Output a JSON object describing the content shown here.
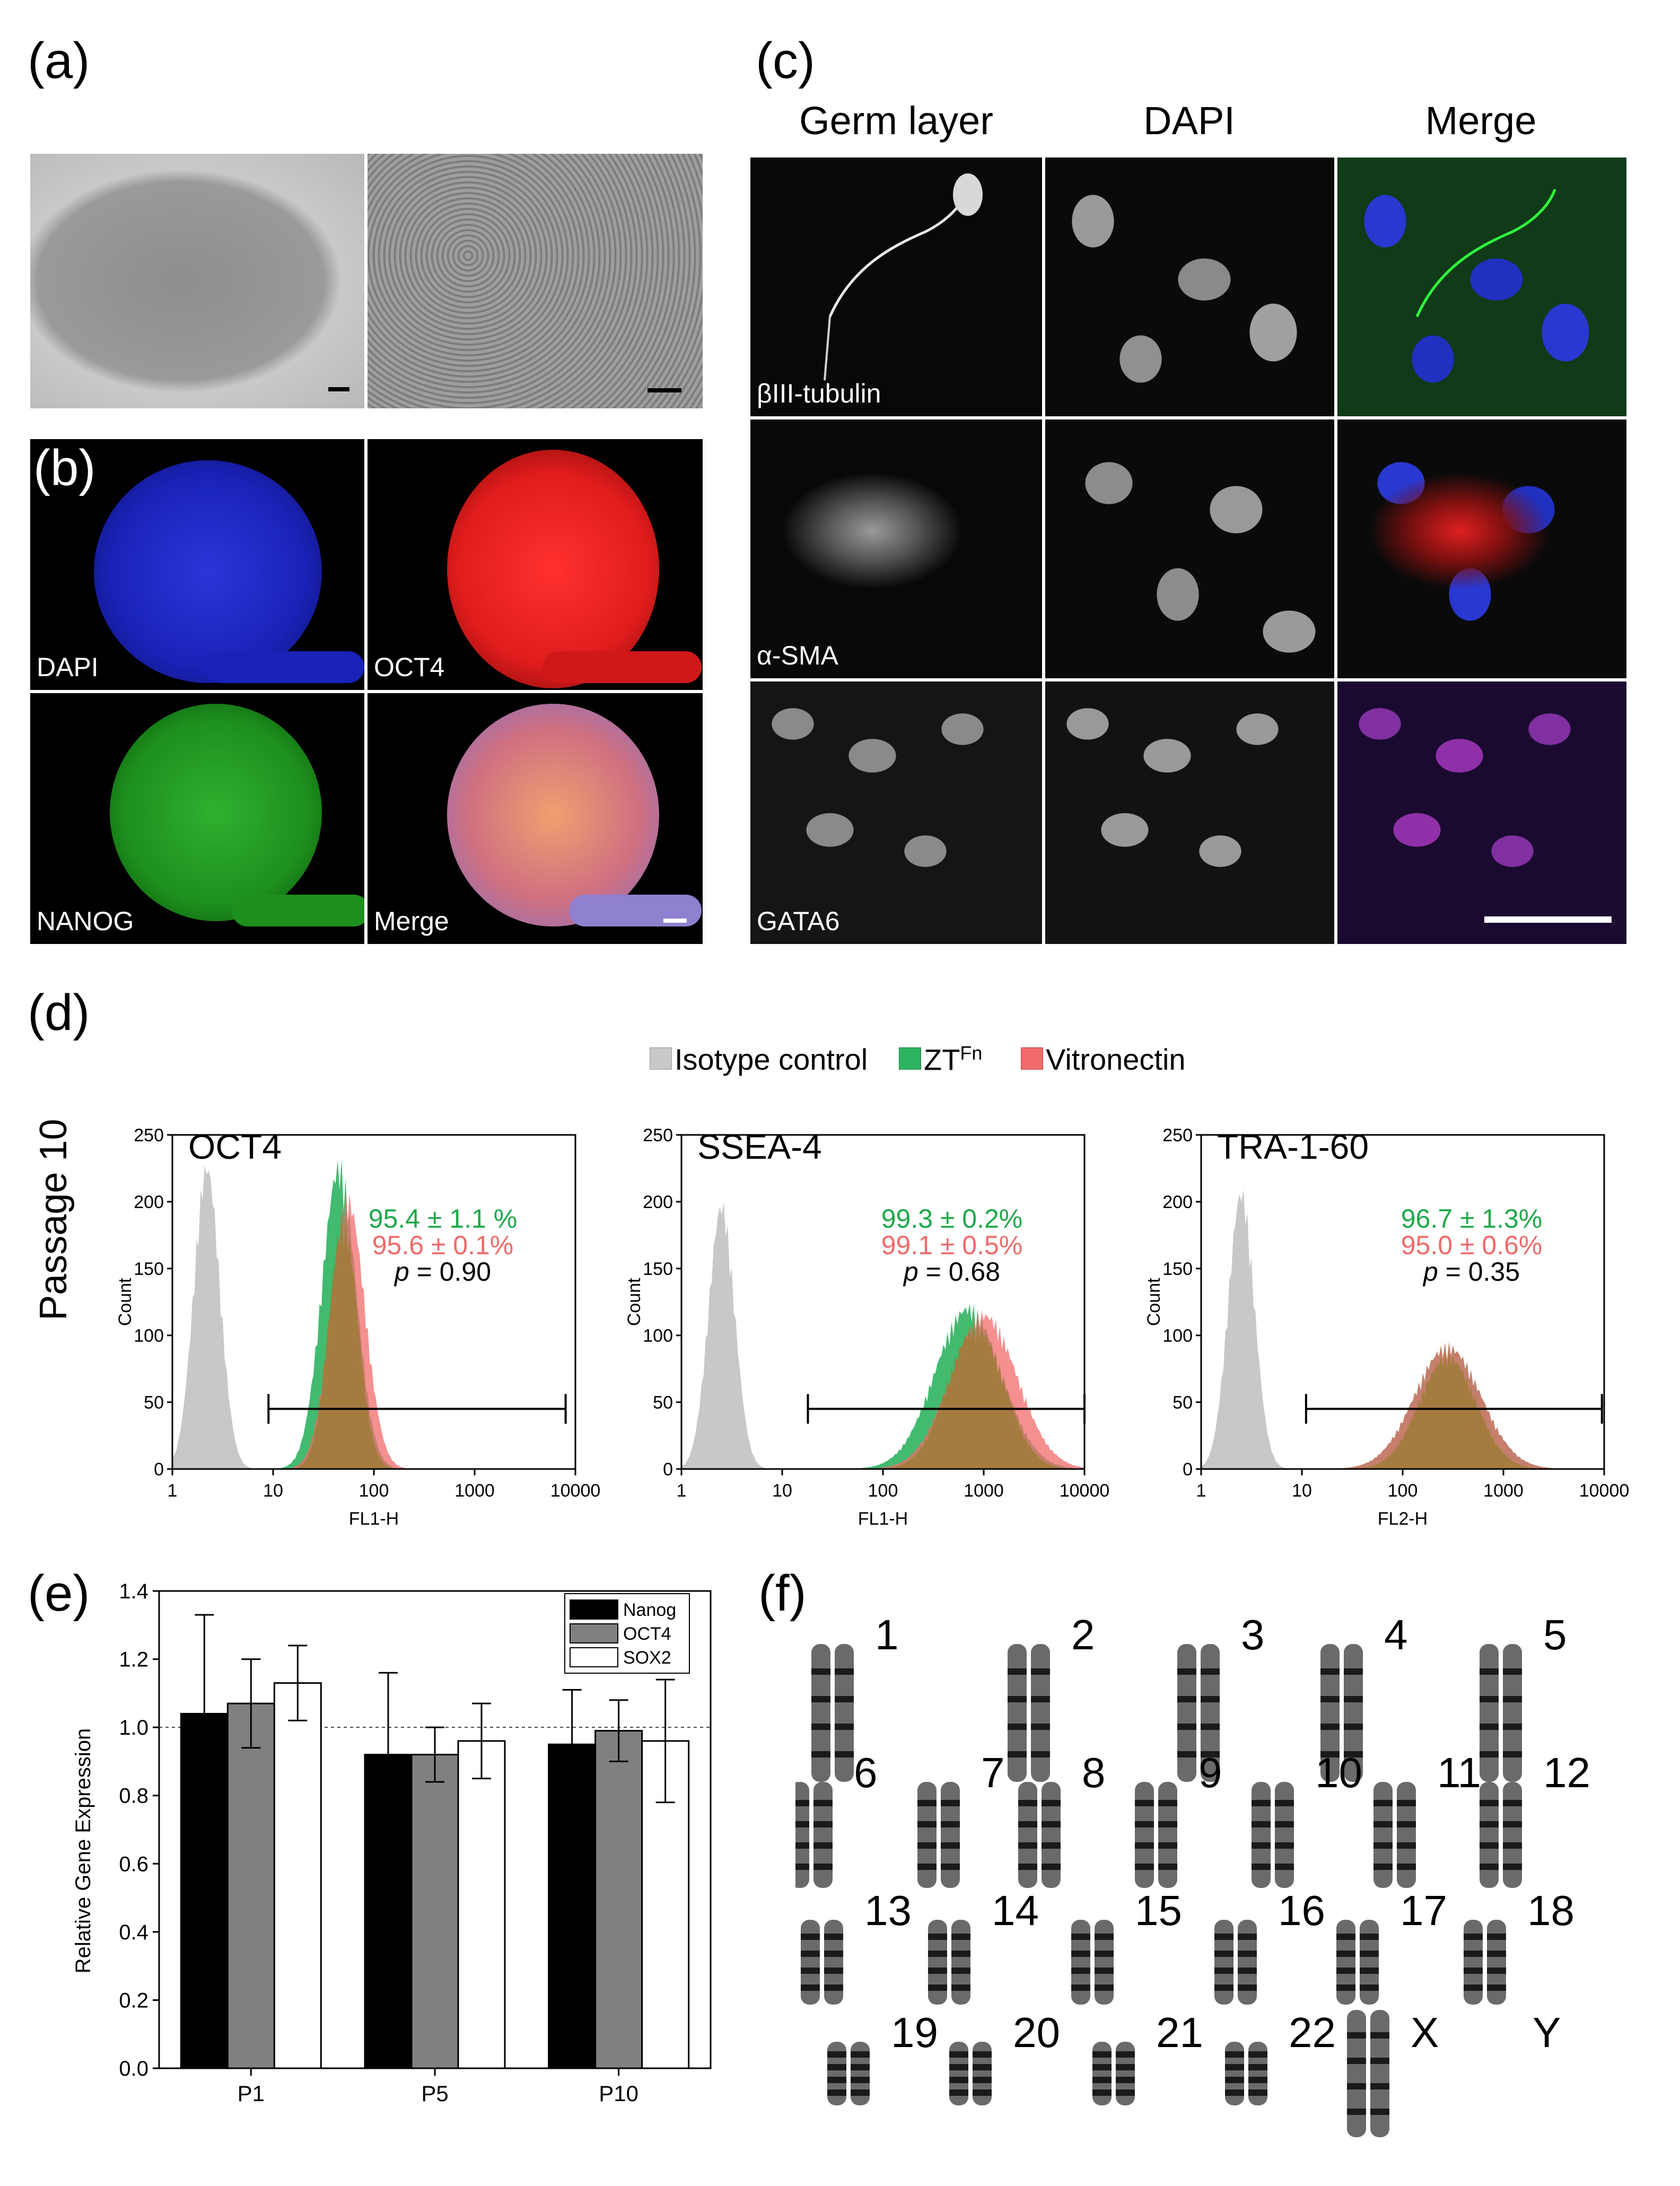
{
  "panels": {
    "a": "(a)",
    "b": "(b)",
    "c": "(c)",
    "d": "(d)",
    "e": "(e)",
    "f": "(f)"
  },
  "panel_b": {
    "labels": [
      "DAPI",
      "OCT4",
      "NANOG",
      "Merge"
    ]
  },
  "panel_c": {
    "col_titles": [
      "Germ layer",
      "DAPI",
      "Merge"
    ],
    "row_labels": [
      "βIII-tubulin",
      "α-SMA",
      "GATA6"
    ]
  },
  "panel_d": {
    "legend": {
      "iso": "Isotype control",
      "zt_base": "ZT",
      "zt_sup": "Fn",
      "vn": "Vitronectin"
    },
    "row_label": "Passage 10",
    "colors": {
      "iso": "#c8c8c8",
      "zt": "#2eb360",
      "vn": "#f26b6b",
      "overlap": "#8a7a1e",
      "green_text": "#1fa84a",
      "red_text": "#f06a6a"
    },
    "plots": [
      {
        "title": "OCT4",
        "xlabel": "FL1-H",
        "ylabel": "Count",
        "stat_zt": "95.4 ± 1.1 %",
        "stat_vn": "95.6 ± 0.1%",
        "p_label": "p",
        "p_value": " = 0.90",
        "gate": [
          9,
          8000
        ],
        "peak_zt": [
          45,
          235
        ],
        "peak_vn": [
          55,
          210
        ],
        "iso_peak": [
          2.2,
          235
        ]
      },
      {
        "title": "SSEA-4",
        "xlabel": "FL1-H",
        "ylabel": "Count",
        "stat_zt": "99.3 ± 0.2%",
        "stat_vn": "99.1 ± 0.5%",
        "p_label": "p",
        "p_value": " = 0.68",
        "gate": [
          18,
          10000
        ],
        "peak_zt": [
          700,
          125
        ],
        "peak_vn": [
          1000,
          120
        ],
        "iso_peak": [
          2.5,
          205
        ]
      },
      {
        "title": "TRA-1-60",
        "xlabel": "FL2-H",
        "ylabel": "Count",
        "stat_zt": "96.7 ± 1.3%",
        "stat_vn": "95.0 ± 0.6%",
        "p_label": "p",
        "p_value": " = 0.35",
        "gate": [
          11,
          9500
        ],
        "peak_zt": [
          280,
          95
        ],
        "peak_vn": [
          280,
          95
        ],
        "iso_peak": [
          2.5,
          215
        ]
      }
    ],
    "yticks": [
      "0",
      "50",
      "100",
      "150",
      "200",
      "250"
    ],
    "xticks": [
      "1",
      "10",
      "100",
      "1000",
      "10000"
    ]
  },
  "chart_data": {
    "type": "bar",
    "categories": [
      "P1",
      "P5",
      "P10"
    ],
    "series": [
      {
        "name": "Nanog",
        "values": [
          1.04,
          0.92,
          0.95
        ],
        "errors": [
          0.29,
          0.24,
          0.16
        ],
        "color": "#000000"
      },
      {
        "name": "OCT4",
        "values": [
          1.07,
          0.92,
          0.99
        ],
        "errors": [
          0.13,
          0.08,
          0.09
        ],
        "color": "#808080"
      },
      {
        "name": "SOX2",
        "values": [
          1.13,
          0.96,
          0.96
        ],
        "errors": [
          0.11,
          0.11,
          0.18
        ],
        "color": "#ffffff"
      }
    ],
    "ylabel": "Relative Gene Expression",
    "ylim": [
      0.0,
      1.4
    ],
    "yticks": [
      "0.0",
      "0.2",
      "0.4",
      "0.6",
      "0.8",
      "1.0",
      "1.2",
      "1.4"
    ],
    "reference_line": 1.0,
    "legend": "top-right"
  },
  "panel_f": {
    "chromosomes": [
      "1",
      "2",
      "3",
      "4",
      "5",
      "6",
      "7",
      "8",
      "9",
      "10",
      "11",
      "12",
      "13",
      "14",
      "15",
      "16",
      "17",
      "18",
      "19",
      "20",
      "21",
      "22",
      "X",
      "Y"
    ]
  }
}
